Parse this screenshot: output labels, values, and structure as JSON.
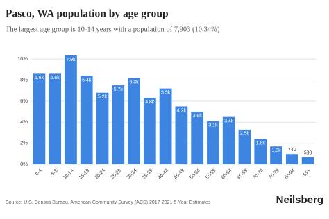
{
  "chart_data": {
    "type": "bar",
    "title": "Pasco, WA population by age group",
    "subtitle": "The largest age group is 10-14 years with a population of 7,903 (10.34%)",
    "categories": [
      "0-4",
      "5-9",
      "10-14",
      "15-19",
      "20-24",
      "25-29",
      "30-34",
      "35-39",
      "40-44",
      "45-49",
      "50-54",
      "55-59",
      "60-64",
      "65-69",
      "70-74",
      "75-79",
      "80-84",
      "85+"
    ],
    "values": [
      8.6,
      8.6,
      10.34,
      8.4,
      6.8,
      7.5,
      8.2,
      6.3,
      7.2,
      5.5,
      5.0,
      4.1,
      4.5,
      3.3,
      2.4,
      1.7,
      0.97,
      0.69
    ],
    "population_labels": [
      "6.6k",
      "6.6k",
      "7.9k",
      "6.4k",
      "5.2k",
      "5.7k",
      "6.3k",
      "4.8k",
      "5.5k",
      "4.2k",
      "3.8k",
      "3.1k",
      "3.4k",
      "2.5k",
      "1.8k",
      "1.3k",
      "740",
      "530"
    ],
    "color": "#3d85e0",
    "ylim": [
      0,
      10.6
    ],
    "yticks": [
      {
        "value": 0,
        "label": "0%"
      },
      {
        "value": 2,
        "label": "2%"
      },
      {
        "value": 4,
        "label": "4%"
      },
      {
        "value": 6,
        "label": "6%"
      },
      {
        "value": 8,
        "label": "8%"
      },
      {
        "value": 10,
        "label": "10%"
      }
    ],
    "grid": true,
    "source": "Source: U.S. Census Bureau, American Community Survey (ACS) 2017-2021 5-Year Estimates",
    "logo": "Neilsberg"
  }
}
